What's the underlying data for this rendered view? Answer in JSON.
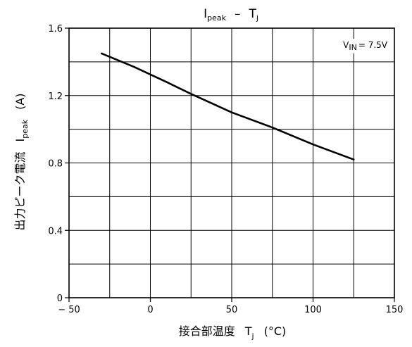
{
  "chart_data": {
    "type": "line",
    "title": {
      "main": "I",
      "main_sub": "peak",
      "sep": "–",
      "var": "T",
      "var_sub": "j"
    },
    "xlabel": {
      "text": "接合部温度",
      "var": "T",
      "var_sub": "j",
      "unit": "(°C)"
    },
    "ylabel": {
      "text": "出力ピーク電流",
      "var": "I",
      "var_sub": "peak",
      "unit": "(A)"
    },
    "xlim": [
      -50,
      150
    ],
    "ylim": [
      0,
      1.6
    ],
    "x_ticks": [
      -50,
      0,
      50,
      100,
      150
    ],
    "x_tick_labels": [
      "− 50",
      "0",
      "50",
      "100",
      "150"
    ],
    "y_ticks": [
      0,
      0.4,
      0.8,
      1.2,
      1.6
    ],
    "y_tick_labels": [
      "0",
      "0.4",
      "0.8",
      "1.2",
      "1.6"
    ],
    "x_grid": [
      -25,
      0,
      25,
      50,
      75,
      100,
      125
    ],
    "y_grid": [
      0.2,
      0.4,
      0.6,
      0.8,
      1.0,
      1.2,
      1.4
    ],
    "grid": true,
    "annotation": {
      "var": "V",
      "var_sub": "IN",
      "text": "= 7.5V",
      "position": "top-right"
    },
    "series": [
      {
        "x": [
          -30,
          -10,
          10,
          25,
          50,
          75,
          100,
          125
        ],
        "y": [
          1.45,
          1.37,
          1.28,
          1.21,
          1.1,
          1.01,
          0.91,
          0.82
        ]
      }
    ]
  }
}
